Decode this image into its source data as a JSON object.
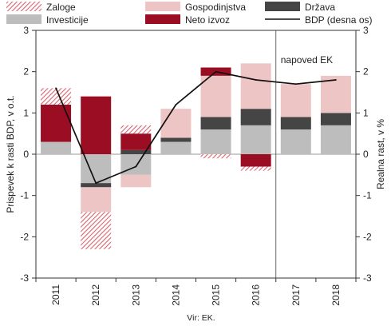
{
  "chart_data": {
    "type": "bar",
    "categories": [
      "2011",
      "2012",
      "2013",
      "2014",
      "2015",
      "2016",
      "2017",
      "2018"
    ],
    "series": [
      {
        "name": "Investicije",
        "kind": "bar",
        "color": "#bdbdbd",
        "values": [
          0.3,
          -0.7,
          -0.5,
          0.3,
          0.6,
          0.7,
          0.6,
          0.7
        ]
      },
      {
        "name": "Država",
        "kind": "bar",
        "color": "#454545",
        "values": [
          0.0,
          -0.1,
          0.1,
          0.1,
          0.3,
          0.4,
          0.3,
          0.3
        ]
      },
      {
        "name": "Gospodinjstva",
        "kind": "bar",
        "color": "#eec5c5",
        "values": [
          0.0,
          -0.6,
          -0.3,
          0.7,
          1.0,
          1.1,
          0.8,
          0.9
        ]
      },
      {
        "name": "Neto izvoz",
        "kind": "bar",
        "color": "#9b0d22",
        "values": [
          0.9,
          1.4,
          0.4,
          0.0,
          0.2,
          -0.3,
          0.0,
          0.0
        ]
      },
      {
        "name": "Zaloge",
        "kind": "bar-hatched",
        "color": "#d9646e",
        "values": [
          0.4,
          -0.9,
          0.2,
          0.0,
          -0.1,
          -0.1,
          0.0,
          0.0
        ]
      },
      {
        "name": "BDP (desna os)",
        "kind": "line",
        "color": "#111111",
        "values": [
          1.6,
          -0.7,
          -0.3,
          1.2,
          2.0,
          1.8,
          1.7,
          1.8
        ]
      }
    ],
    "ylabel": "Prispevek k rasti BDP, v o.t.",
    "y2label": "Realna rast, v %",
    "ylim": [
      -3,
      3
    ],
    "y2lim": [
      -3,
      3
    ],
    "yticks": [
      -3,
      -2,
      -1,
      0,
      1,
      2,
      3
    ],
    "forecast_label": "napoved EK",
    "forecast_from": "2017",
    "source": "Vir: EK.",
    "grid": false
  }
}
